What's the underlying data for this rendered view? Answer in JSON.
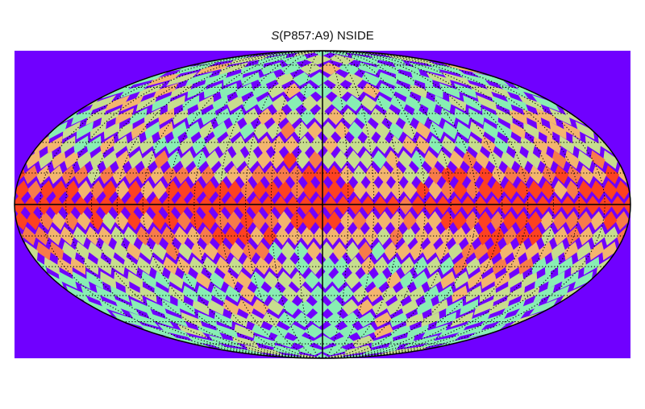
{
  "chart_data": {
    "type": "heatmap",
    "projection": "mollweide",
    "title_symbol": "S",
    "title_rest": "(P857:A9) NSIDE",
    "background_color": "#7000ff",
    "colormap": "rainbow",
    "colormap_stops": [
      "#7000ff",
      "#2f8cf5",
      "#4fe8e0",
      "#a0f0a0",
      "#f2c97a",
      "#f58a55",
      "#ff2a10"
    ],
    "grid": true,
    "graticule_meridian_step_deg": 15,
    "graticule_parallel_step_deg": 15,
    "cell_angular_size_deg": 7.3,
    "value_range": [
      0,
      1
    ],
    "profile": {
      "description_lat_deg": [
        0,
        5,
        10,
        18,
        25,
        35,
        45,
        60,
        75,
        90
      ],
      "mean_value": [
        0.96,
        0.93,
        0.86,
        0.74,
        0.64,
        0.55,
        0.5,
        0.47,
        0.46,
        0.46
      ]
    }
  }
}
